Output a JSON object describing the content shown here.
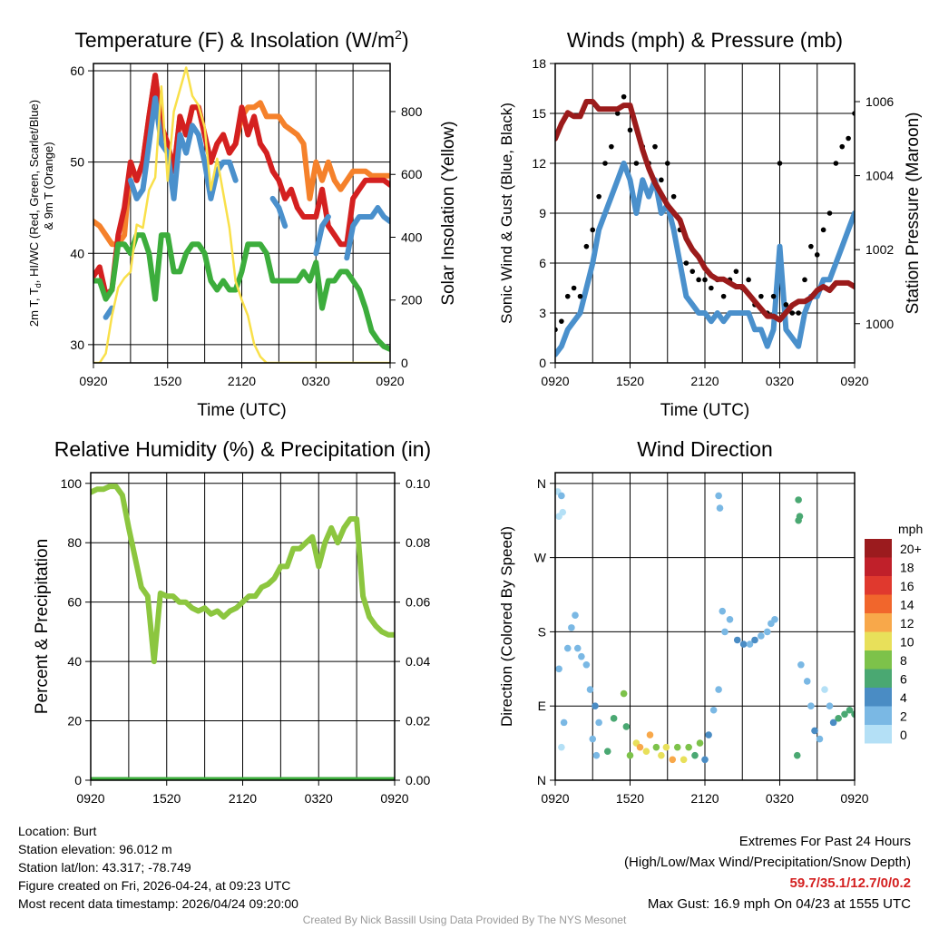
{
  "time_ticks": [
    "0920",
    "1520",
    "2120",
    "0320",
    "0920"
  ],
  "chart_data": [
    {
      "type": "line",
      "title": "Temperature (F) & Insolation (W/m",
      "title_sup": "2",
      "title_end": ")",
      "xlabel": "Time (UTC)",
      "ylabel_l1": "2m T, T",
      "ylabel_sub": "d",
      "ylabel_l1b": ", HI/WC (Red, Green, Scarlet/Blue)",
      "ylabel_l2": "& 9m T (Orange)",
      "ylabel_right": "Solar Insolation (Yellow)",
      "ylim": [
        28,
        60.8
      ],
      "yticks": [
        "30",
        "40",
        "50",
        "60"
      ],
      "y2lim": [
        0,
        953
      ],
      "y2ticks": [
        "0",
        "200",
        "400",
        "600",
        "800"
      ],
      "x_hours_step": 0.5,
      "series": [
        {
          "name": "9m T",
          "color": "#f5812b",
          "values": [
            43.5,
            43,
            42,
            41,
            41,
            42,
            50,
            48,
            50,
            55,
            59.5,
            54,
            52,
            49,
            55,
            53,
            56,
            56,
            53,
            50,
            52,
            53,
            51,
            52,
            55,
            56,
            56,
            56.5,
            55,
            55,
            55,
            54,
            53.5,
            53,
            52,
            46,
            50,
            48,
            50,
            48,
            47,
            48,
            49,
            49,
            49,
            48.5,
            48.5,
            48.5,
            48.5
          ]
        },
        {
          "name": "2m T",
          "color": "#d42020",
          "values": [
            37.5,
            38.5,
            35.5,
            36,
            42,
            45,
            50,
            48,
            50,
            55,
            59.5,
            54,
            52,
            49,
            55,
            53,
            56,
            56,
            53,
            50,
            52,
            53,
            51,
            52,
            56,
            53,
            55,
            52,
            51,
            49,
            48,
            46,
            47,
            45,
            44,
            44,
            44,
            47,
            43,
            42,
            41,
            41,
            46,
            47,
            48,
            48,
            48,
            48,
            47.5
          ]
        },
        {
          "name": "Wind chill",
          "color": "#4a90cc",
          "values": [
            null,
            null,
            33,
            34,
            null,
            null,
            48,
            46,
            47,
            52,
            57,
            52,
            51,
            46,
            53,
            51,
            54,
            53,
            50,
            46,
            49,
            50,
            50,
            48,
            null,
            null,
            null,
            48.5,
            null,
            46,
            45,
            43,
            null,
            null,
            null,
            null,
            40,
            43,
            44,
            null,
            null,
            39.5,
            43,
            44,
            44,
            44,
            45,
            44,
            43.5
          ]
        },
        {
          "name": "Dew point",
          "color": "#3cad3c",
          "values": [
            37,
            37,
            35,
            36,
            41,
            41,
            40,
            42,
            42,
            40,
            35,
            42,
            42,
            38,
            38,
            40,
            41,
            41,
            40,
            37,
            36,
            37,
            36,
            36,
            38,
            41,
            41,
            41,
            40,
            37,
            37,
            37,
            37,
            37,
            38,
            37,
            39,
            34,
            37,
            37,
            38,
            38,
            37,
            36,
            34,
            31.5,
            30.5,
            29.8,
            29.5
          ]
        },
        {
          "name": "Solar Insolation",
          "color": "#f9e04a",
          "axis": "right",
          "values": [
            0,
            0,
            30,
            150,
            240,
            270,
            290,
            440,
            430,
            550,
            590,
            880,
            580,
            800,
            870,
            940,
            850,
            820,
            750,
            550,
            650,
            540,
            430,
            260,
            200,
            150,
            60,
            20,
            0,
            0,
            0,
            0,
            0,
            0,
            0,
            0,
            0,
            0,
            0,
            0,
            0,
            0,
            0,
            0,
            0,
            0,
            0,
            0,
            0
          ]
        }
      ]
    },
    {
      "type": "line",
      "title": "Winds (mph) & Pressure (mb)",
      "xlabel": "Time (UTC)",
      "ylabel": "Sonic Wind & Gust (Blue, Black)",
      "ylabel_right": "Station Pressure (Maroon)",
      "ylim": [
        0,
        18
      ],
      "yticks": [
        "0",
        "3",
        "6",
        "9",
        "12",
        "15",
        "18"
      ],
      "y2lim": [
        998.94,
        1007.03
      ],
      "y2ticks": [
        "1000",
        "1002",
        "1004",
        "1006"
      ],
      "x_hours_step": 0.5,
      "series": [
        {
          "name": "Sonic Wind",
          "color": "#4a90cc",
          "values": [
            0.5,
            1,
            2,
            2.5,
            3,
            4.5,
            6,
            8,
            9,
            10,
            11,
            12,
            11,
            9,
            11,
            10,
            11,
            9,
            9.5,
            8,
            6,
            4,
            3.5,
            3,
            3,
            2.5,
            3,
            2.5,
            3,
            3,
            3,
            3,
            2,
            2,
            1,
            2,
            7,
            2,
            1.5,
            1,
            3,
            4,
            4,
            5,
            5,
            6,
            7,
            8,
            9
          ]
        },
        {
          "name": "Gust",
          "color": "#000000",
          "style": "dots",
          "values": [
            2,
            2.5,
            4,
            4.5,
            4,
            7,
            8,
            10,
            12,
            13,
            15,
            16,
            14,
            12,
            13,
            12,
            13,
            11,
            12,
            10,
            8,
            6,
            5.5,
            5,
            5,
            4.5,
            5,
            4,
            5,
            5.5,
            4.5,
            5,
            3.5,
            4,
            3,
            4,
            12,
            3.5,
            3,
            3,
            5,
            7,
            6.5,
            8,
            9,
            12,
            13,
            13.5,
            15
          ]
        },
        {
          "name": "Station Pressure",
          "color": "#9b1b1b",
          "axis": "right",
          "values": [
            1005,
            1005.4,
            1005.7,
            1005.6,
            1005.6,
            1006,
            1006,
            1005.8,
            1005.8,
            1005.8,
            1005.8,
            1005.9,
            1005.9,
            1005.3,
            1004.7,
            1004.2,
            1003.8,
            1003.5,
            1003.2,
            1003,
            1002.8,
            1002.3,
            1002,
            1001.8,
            1001.5,
            1001.3,
            1001.2,
            1001.2,
            1001.1,
            1001,
            1001,
            1000.8,
            1000.6,
            1000.4,
            1000.2,
            1000.2,
            1000.1,
            1000.3,
            1000.5,
            1000.6,
            1000.6,
            1000.7,
            1000.9,
            1001,
            1000.9,
            1001.1,
            1001.1,
            1001.1,
            1001
          ]
        }
      ]
    },
    {
      "type": "line",
      "title": "Relative Humidity (%) & Precipitation (in)",
      "ylabel": "Percent & Precipitation",
      "ylim": [
        0,
        103.6
      ],
      "yticks": [
        "0",
        "20",
        "40",
        "60",
        "80",
        "100"
      ],
      "y2lim": [
        0,
        0.1036
      ],
      "y2ticks": [
        "0.00",
        "0.02",
        "0.04",
        "0.06",
        "0.08",
        "0.10"
      ],
      "x_hours_step": 0.5,
      "series": [
        {
          "name": "Relative Humidity",
          "color": "#8cc63f",
          "values": [
            97,
            98,
            98,
            99,
            99,
            96,
            85,
            75,
            65,
            62,
            40,
            63,
            62,
            62,
            60,
            60,
            58,
            57,
            58,
            56,
            57,
            55,
            57,
            58,
            60,
            62,
            62,
            65,
            66,
            68,
            72,
            72,
            78,
            78,
            80,
            82,
            72,
            80,
            85,
            80,
            85,
            88,
            88,
            62,
            55,
            52,
            50,
            49,
            49
          ]
        },
        {
          "name": "Precipitation",
          "color": "#3cad3c",
          "axis": "right",
          "values": [
            0,
            0,
            0,
            0,
            0,
            0,
            0,
            0,
            0,
            0,
            0,
            0,
            0,
            0,
            0,
            0,
            0,
            0,
            0,
            0,
            0,
            0,
            0,
            0,
            0,
            0,
            0,
            0,
            0,
            0,
            0,
            0,
            0,
            0,
            0,
            0,
            0,
            0,
            0,
            0,
            0,
            0,
            0,
            0,
            0,
            0,
            0,
            0,
            0
          ]
        }
      ]
    },
    {
      "type": "scatter",
      "title": "Wind Direction",
      "ylabel": "Direction (Colored By Speed)",
      "ylim": [
        0,
        373
      ],
      "yticks": [
        "N",
        "E",
        "S",
        "W",
        "N"
      ],
      "ytick_values": [
        0,
        90,
        180,
        270,
        360
      ],
      "legend": {
        "title": "mph",
        "labels": [
          "20+",
          "18",
          "16",
          "14",
          "12",
          "10",
          "8",
          "6",
          "4",
          "2",
          "0"
        ],
        "colors": [
          "#9b1b1e",
          "#c0202a",
          "#e0392e",
          "#f1662c",
          "#f8a84a",
          "#e8e05a",
          "#7dc24a",
          "#4aa872",
          "#4a8cc4",
          "#7ab8e4",
          "#b4e0f6"
        ]
      },
      "points": [
        [
          0.2,
          350,
          1
        ],
        [
          0.3,
          320,
          1
        ],
        [
          0.5,
          345,
          2
        ],
        [
          0.6,
          325,
          1
        ],
        [
          0.3,
          135,
          2
        ],
        [
          0.7,
          70,
          2
        ],
        [
          0.5,
          40,
          1
        ],
        [
          1,
          160,
          2
        ],
        [
          1.3,
          185,
          2
        ],
        [
          1.6,
          200,
          3
        ],
        [
          1.8,
          160,
          2
        ],
        [
          2.1,
          150,
          3
        ],
        [
          2.5,
          140,
          2
        ],
        [
          2.8,
          110,
          3
        ],
        [
          3.2,
          90,
          4
        ],
        [
          3.5,
          70,
          3
        ],
        [
          3,
          50,
          2
        ],
        [
          3.3,
          30,
          2
        ],
        [
          4.2,
          35,
          6
        ],
        [
          4.7,
          75,
          6
        ],
        [
          5.5,
          105,
          8
        ],
        [
          5.7,
          65,
          7
        ],
        [
          6,
          30,
          8
        ],
        [
          6.5,
          45,
          10
        ],
        [
          6.8,
          40,
          12
        ],
        [
          7.3,
          35,
          11
        ],
        [
          7.6,
          55,
          12
        ],
        [
          8.1,
          40,
          8
        ],
        [
          8.5,
          30,
          10
        ],
        [
          8.9,
          40,
          11
        ],
        [
          9.4,
          25,
          12
        ],
        [
          9.8,
          40,
          9
        ],
        [
          10.3,
          25,
          10
        ],
        [
          10.7,
          40,
          8
        ],
        [
          11.2,
          30,
          7
        ],
        [
          11.6,
          45,
          8
        ],
        [
          12,
          25,
          5
        ],
        [
          12.3,
          55,
          4
        ],
        [
          12.7,
          85,
          3
        ],
        [
          13.1,
          110,
          3
        ],
        [
          13.6,
          180,
          3
        ],
        [
          13.4,
          205,
          2
        ],
        [
          14,
          195,
          3
        ],
        [
          14.6,
          170,
          4
        ],
        [
          15.1,
          165,
          4
        ],
        [
          15.6,
          165,
          3
        ],
        [
          16,
          170,
          4
        ],
        [
          16.5,
          175,
          3
        ],
        [
          17,
          180,
          2
        ],
        [
          17.3,
          190,
          2
        ],
        [
          17.6,
          195,
          2
        ],
        [
          13.1,
          345,
          2
        ],
        [
          13.2,
          330,
          2
        ],
        [
          19.5,
          340,
          7
        ],
        [
          19.5,
          315,
          6
        ],
        [
          19.6,
          320,
          6
        ],
        [
          19.4,
          30,
          6
        ],
        [
          19.7,
          140,
          3
        ],
        [
          20.2,
          120,
          3
        ],
        [
          20.5,
          90,
          3
        ],
        [
          20.8,
          60,
          4
        ],
        [
          21.2,
          50,
          3
        ],
        [
          21.6,
          110,
          1
        ],
        [
          22,
          90,
          2
        ],
        [
          22.3,
          70,
          5
        ],
        [
          22.7,
          75,
          6
        ],
        [
          23.2,
          80,
          6
        ],
        [
          23.6,
          85,
          7
        ],
        [
          24,
          80,
          6
        ]
      ]
    }
  ],
  "info": {
    "location": "Location: Burt",
    "elevation": "Station elevation: 96.012 m",
    "latlon": "Station lat/lon: 43.317; -78.749",
    "created": "Figure created on Fri, 2026-04-24, at 09:23 UTC",
    "recent": "Most recent data timestamp: 2026/04/24 09:20:00"
  },
  "extremes": {
    "title": "Extremes For Past 24 Hours",
    "subtitle": "(High/Low/Max Wind/Precipitation/Snow Depth)",
    "values": "59.7/35.1/12.7/0/0.2",
    "gust": "Max Gust: 16.9 mph On 04/23 at 1555 UTC"
  },
  "credit": "Created By Nick Bassill Using Data Provided By The NYS Mesonet"
}
